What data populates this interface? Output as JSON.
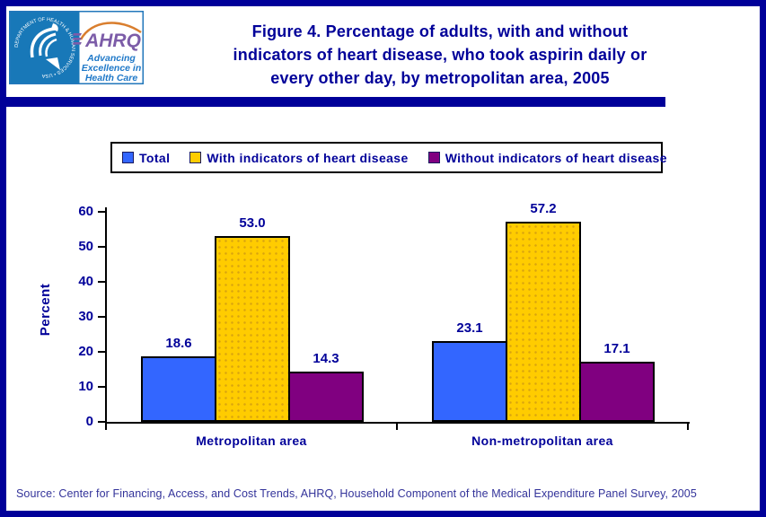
{
  "header": {
    "logo": {
      "hhs_ring_text": "DEPARTMENT OF HEALTH & HUMAN SERVICES • USA",
      "ahrq_acronym": "AHRQ",
      "ahrq_tagline_lines": [
        "Advancing",
        "Excellence in",
        "Health Care"
      ]
    },
    "title_lines": [
      "Figure 4. Percentage of adults, with and without",
      "indicators of heart disease, who took aspirin daily or",
      "every other day, by metropolitan area, 2005"
    ]
  },
  "legend": {
    "items": [
      {
        "label": "Total",
        "color": "#3366FF"
      },
      {
        "label": "With indicators of heart disease",
        "color": "#FFCC00"
      },
      {
        "label": "Without indicators of heart disease",
        "color": "#800080"
      }
    ]
  },
  "chart_data": {
    "type": "bar",
    "title": "Figure 4. Percentage of adults, with and without indicators of heart disease, who took aspirin daily or every other day, by metropolitan area, 2005",
    "categories": [
      "Metropolitan area",
      "Non-metropolitan area"
    ],
    "series": [
      {
        "name": "Total",
        "values": [
          18.6,
          23.1
        ],
        "color": "#3366FF",
        "pattern": "solid"
      },
      {
        "name": "With indicators of heart disease",
        "values": [
          53.0,
          57.2
        ],
        "color": "#FFCC00",
        "pattern": "dots"
      },
      {
        "name": "Without indicators of heart disease",
        "values": [
          14.3,
          17.1
        ],
        "color": "#800080",
        "pattern": "solid"
      }
    ],
    "ylabel": "Percent",
    "xlabel": "",
    "ylim": [
      0,
      60
    ],
    "yticks": [
      0,
      10,
      20,
      30,
      40,
      50,
      60
    ],
    "grid": false,
    "legend_position": "top",
    "data_labels": true
  },
  "source": "Source: Center for Financing, Access, and Cost Trends, AHRQ, Household Component of the Medical Expenditure Panel Survey, 2005",
  "colors": {
    "navy": "#000099",
    "axis_black": "#000000",
    "hhs_blue": "#1878B8",
    "ahrq_purple": "#7C5CA8",
    "arc_orange": "#D97E2E",
    "tagline_blue": "#1E78C8",
    "dot_texture": "#D9A40F"
  }
}
